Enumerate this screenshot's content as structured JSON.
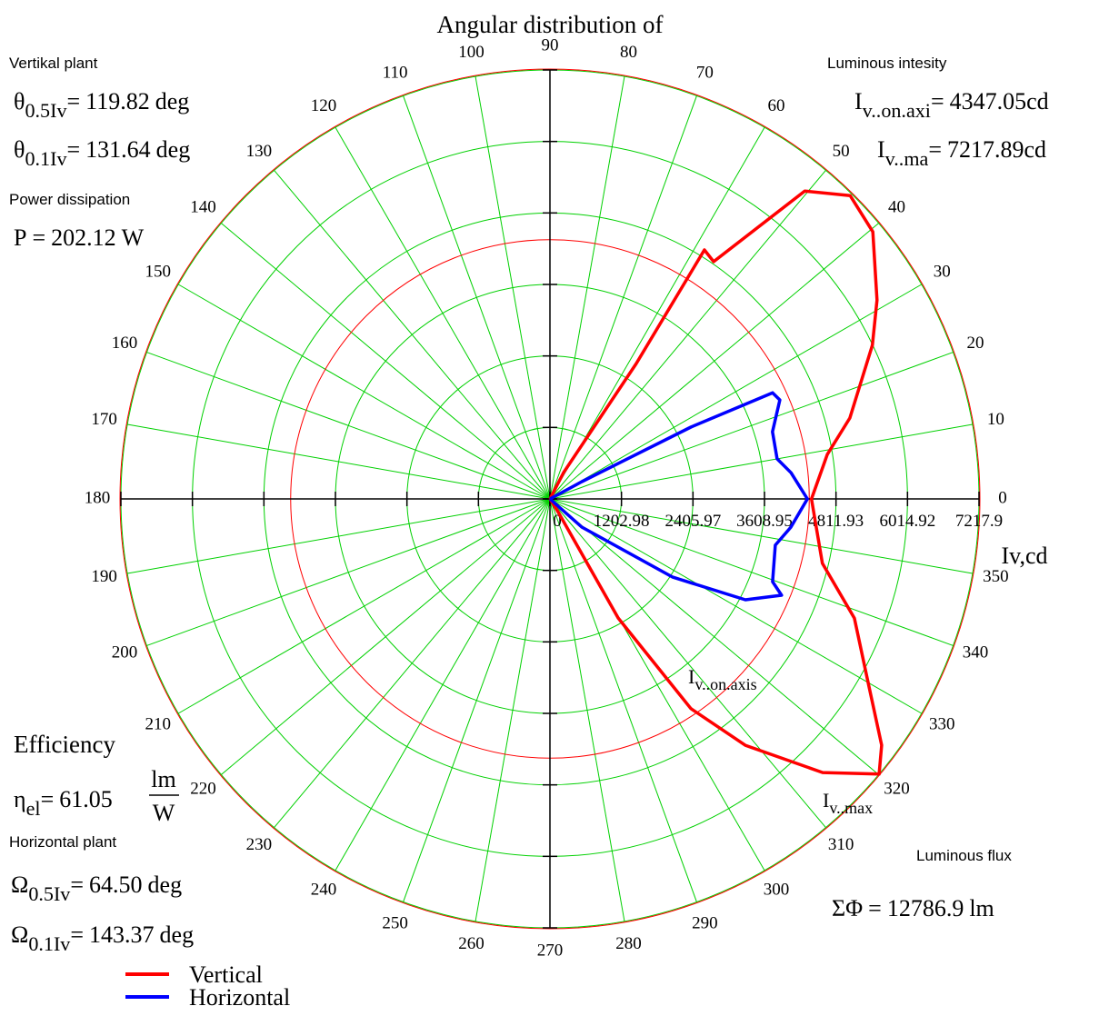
{
  "chart_data": {
    "type": "polar",
    "title": "Angular distribution of",
    "rlim": [
      0,
      7217.9
    ],
    "rticks": [
      0,
      1202.98,
      2405.97,
      3608.95,
      4811.93,
      6014.92,
      7217.9
    ],
    "thetaticks": [
      0,
      10,
      20,
      30,
      40,
      50,
      60,
      70,
      80,
      90,
      100,
      110,
      120,
      130,
      140,
      150,
      160,
      170,
      180,
      190,
      200,
      210,
      220,
      230,
      240,
      250,
      260,
      270,
      280,
      290,
      300,
      310,
      320,
      330,
      340,
      350
    ],
    "r_label": "Iv,cd",
    "grid": true,
    "grid_color": "#00d000",
    "series": [
      {
        "name": "Vertical",
        "color": "#ff0000",
        "theta": [
          62.6,
          57.5,
          58.2,
          55.4,
          50.4,
          45.3,
          39.6,
          31.3,
          25.5,
          15.1,
          9.1,
          0,
          346.7,
          338.6,
          330.1,
          323.4,
          320.1,
          314.9,
          308.4,
          303.9,
          299.8,
          302
        ],
        "values": [
          500,
          2700,
          4930,
          4850,
          6725,
          7180,
          7050,
          6440,
          6010,
          5225,
          4725,
          4400,
          4710,
          5500,
          6170,
          6950,
          7217.9,
          6500,
          5290,
          4250,
          2310,
          290
        ]
      },
      {
        "name": "Horizontal",
        "color": "#0000ff",
        "theta": [
          28.5,
          27,
          25.5,
          23.3,
          16.8,
          10,
          6.2,
          0,
          353.3,
          348.4,
          339.6,
          337.4,
          332.7,
          327.5,
          318.5
        ],
        "values": [
          610,
          2660,
          4150,
          4210,
          3910,
          3880,
          4080,
          4330,
          4080,
          3870,
          3995,
          4220,
          3700,
          2450,
          715
        ]
      }
    ],
    "markers": [
      {
        "symbol": "I",
        "sub": "v..on.axis"
      },
      {
        "symbol": "I",
        "sub": "v..max"
      }
    ],
    "annotations": {
      "vertical": {
        "heading": "Vertikal plant",
        "half": {
          "symbol": "θ",
          "sub": "0.5Iv",
          "eq": "=",
          "value": 119.82,
          "unit": "deg"
        },
        "tenth": {
          "symbol": "θ",
          "sub": "0.1Iv",
          "eq": "=",
          "value": 131.64,
          "unit": "deg"
        }
      },
      "power": {
        "heading": "Power dissipation",
        "symbol": "P",
        "eq": "=",
        "value": 202.12,
        "unit": "W"
      },
      "efficiency": {
        "heading": "Efficiency",
        "symbol": "η",
        "sub": "el",
        "eq": "=",
        "value": 61.05,
        "unit_num": "lm",
        "unit_den": "W"
      },
      "horizontal": {
        "heading": "Horizontal plant",
        "half": {
          "symbol": "Ω",
          "sub": "0.5Iv",
          "eq": "=",
          "value": 64.5,
          "value_label": "64.50",
          "unit": "deg"
        },
        "tenth": {
          "symbol": "Ω",
          "sub": "0.1Iv",
          "eq": "=",
          "value": 143.37,
          "unit": "deg"
        }
      },
      "intensity": {
        "heading": "Luminous intesity",
        "on_axis": {
          "symbol": "I",
          "sub": "v..on.axi",
          "eq": "=",
          "value": 4347.05,
          "unit": "cd"
        },
        "max": {
          "symbol": "I",
          "sub": "v..ma",
          "eq": "=",
          "value": 7217.89,
          "unit": "cd"
        }
      },
      "flux": {
        "heading": "Luminous flux",
        "symbol": "ΣΦ",
        "eq": "=",
        "value": 12786.9,
        "unit": "lm"
      }
    }
  }
}
